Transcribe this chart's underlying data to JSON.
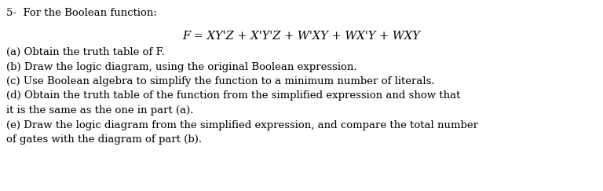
{
  "background_color": "#ffffff",
  "figsize": [
    7.68,
    2.43
  ],
  "dpi": 100,
  "header": "5-  For the Boolean function:",
  "header_fontsize": 9.5,
  "header_fontfamily": "serif",
  "formula_fontsize": 10.5,
  "items": [
    "(a) Obtain the truth table of F.",
    "(b) Draw the logic diagram, using the original Boolean expression.",
    "(c) Use Boolean algebra to simplify the function to a minimum number of literals.",
    "(d) Obtain the truth table of the function from the simplified expression and show that",
    "it is the same as the one in part (a).",
    "(e) Draw the logic diagram from the simplified expression, and compare the total number",
    "of gates with the diagram of part (b)."
  ],
  "item_fontsize": 9.5,
  "item_fontfamily": "serif",
  "text_color": "#000000"
}
